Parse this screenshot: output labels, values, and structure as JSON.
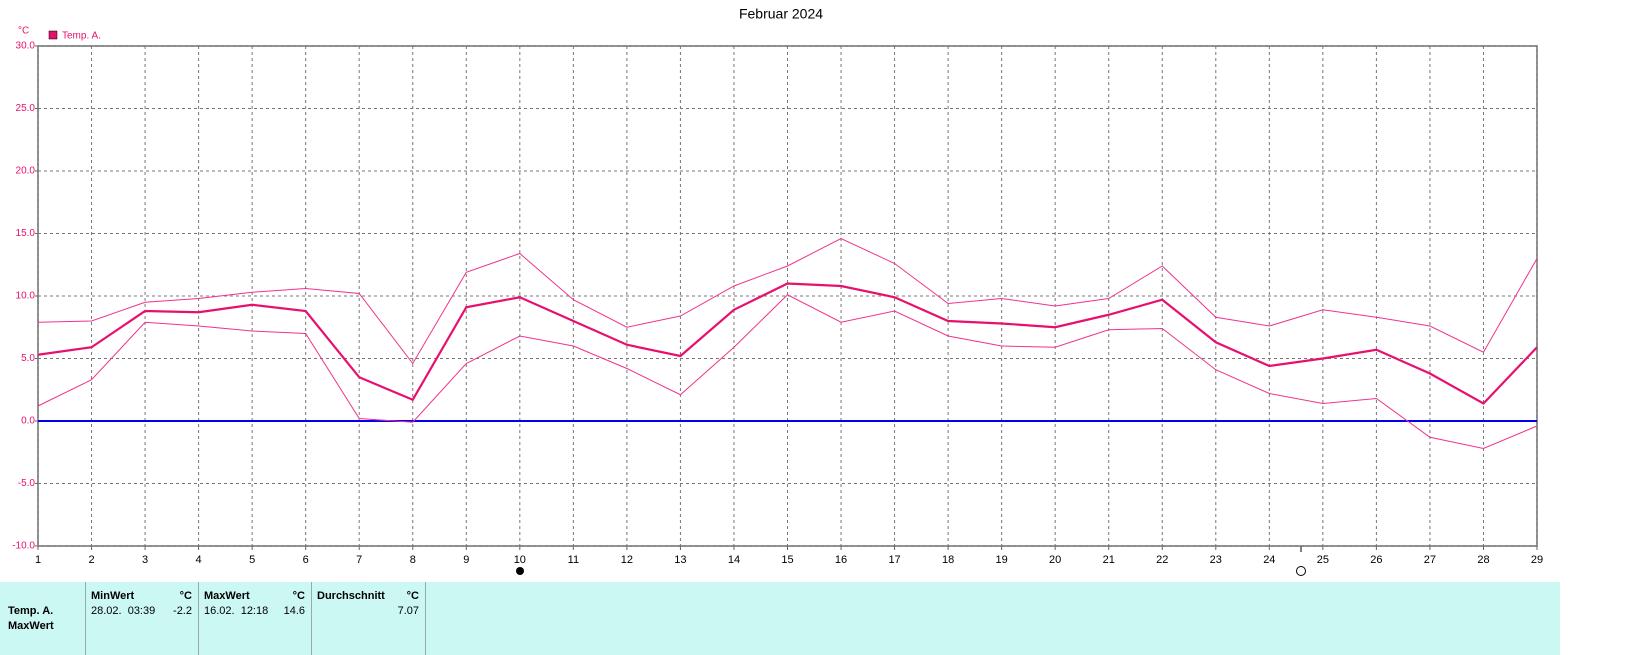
{
  "chart_data": {
    "type": "line",
    "title": "Februar 2024",
    "y_unit": "°C",
    "x": [
      1,
      2,
      3,
      4,
      5,
      6,
      7,
      8,
      9,
      10,
      11,
      12,
      13,
      14,
      15,
      16,
      17,
      18,
      19,
      20,
      21,
      22,
      23,
      24,
      25,
      26,
      27,
      28,
      29
    ],
    "xlim": [
      1,
      29
    ],
    "xticks": [
      1,
      2,
      3,
      4,
      5,
      6,
      7,
      8,
      9,
      10,
      11,
      12,
      13,
      14,
      15,
      16,
      17,
      18,
      19,
      20,
      21,
      22,
      23,
      24,
      25,
      26,
      27,
      28,
      29
    ],
    "ylim": [
      -10,
      30
    ],
    "yticks": [
      {
        "value": -10,
        "label": "-10.0"
      },
      {
        "value": -5,
        "label": "-5.0"
      },
      {
        "value": 0,
        "label": "0.0"
      },
      {
        "value": 5,
        "label": "5.0"
      },
      {
        "value": 10,
        "label": "10.0"
      },
      {
        "value": 15,
        "label": "15.0"
      },
      {
        "value": 20,
        "label": "20.0"
      },
      {
        "value": 25,
        "label": "25.0"
      },
      {
        "value": 30,
        "label": "30.0"
      }
    ],
    "grid": true,
    "grid_style": "dashed",
    "zero_line_color": "#0000ee",
    "legend": "upper left",
    "series": [
      {
        "name": "Temp. A.",
        "color": "#e8106e",
        "line_width": 2.2,
        "values": [
          5.3,
          5.9,
          8.8,
          8.7,
          9.3,
          8.8,
          3.5,
          1.7,
          9.1,
          9.9,
          8.0,
          6.1,
          5.2,
          8.9,
          11.0,
          10.8,
          9.9,
          8.0,
          7.8,
          7.5,
          8.5,
          9.7,
          6.3,
          4.4,
          5.0,
          5.7,
          3.8,
          1.4,
          5.9
        ]
      },
      {
        "color": "#f0338a",
        "line_width": 1,
        "values": [
          7.9,
          8.0,
          9.5,
          9.8,
          10.3,
          10.6,
          10.2,
          4.6,
          11.9,
          13.4,
          9.7,
          7.5,
          8.4,
          10.8,
          12.4,
          14.6,
          12.6,
          9.4,
          9.8,
          9.2,
          9.8,
          12.4,
          8.3,
          7.6,
          8.9,
          8.3,
          7.6,
          5.5,
          13.0
        ]
      },
      {
        "color": "#f0338a",
        "line_width": 1,
        "values": [
          1.2,
          3.3,
          7.9,
          7.6,
          7.2,
          7.0,
          0.2,
          -0.1,
          4.6,
          6.8,
          6.0,
          4.2,
          2.1,
          5.9,
          10.1,
          7.9,
          8.8,
          6.8,
          6.0,
          5.9,
          7.3,
          7.4,
          4.1,
          2.2,
          1.4,
          1.8,
          -1.3,
          -2.2,
          -0.4
        ]
      }
    ]
  },
  "stats": {
    "columns": [
      {
        "label": "MinWert",
        "unit": "°C"
      },
      {
        "label": "MaxWert",
        "unit": "°C"
      },
      {
        "label": "Durchschnitt",
        "unit": "°C"
      }
    ],
    "rows": [
      {
        "label": "Temp. A.",
        "min_time": "28.02.  03:39",
        "min": -2.2,
        "max_time": "16.02.  12:18",
        "max": 14.6,
        "avg": 7.07
      },
      {
        "label": "MaxWert"
      }
    ]
  }
}
